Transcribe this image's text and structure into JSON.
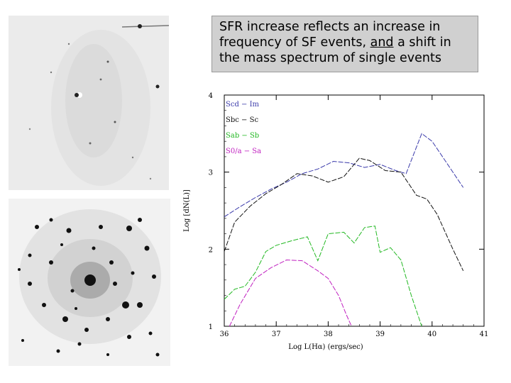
{
  "callout": {
    "text_before": "SFR increase reflects an increase in frequency of SF events, ",
    "text_underlined": "and",
    "text_after": " a shift in the mass spectrum of single events"
  },
  "images": {
    "top": "edge-on galaxy image (faint)",
    "bottom": "face-on spiral galaxy image"
  },
  "colors": {
    "Sm": "#3a3aaa",
    "Sbc": "#111111",
    "Sab": "#22b822",
    "Sa": "#c020c0"
  },
  "chart_data": {
    "type": "line",
    "xlabel": "Log L(Hα)   (ergs/sec)",
    "ylabel": "Log [dN(L)]",
    "xlim": [
      36,
      41
    ],
    "ylim": [
      1,
      4
    ],
    "x_ticks": [
      "36",
      "37",
      "38",
      "39",
      "40",
      "41"
    ],
    "y_ticks": [
      "1",
      "2",
      "3",
      "4"
    ],
    "series": [
      {
        "name": "Scd − Im",
        "color_key": "Sm",
        "x": [
          36.0,
          36.3,
          36.6,
          36.9,
          37.2,
          37.5,
          37.8,
          38.1,
          38.4,
          38.7,
          39.0,
          39.3,
          39.5,
          39.8,
          40.0,
          40.3,
          40.6
        ],
        "y": [
          2.42,
          2.55,
          2.67,
          2.78,
          2.87,
          2.98,
          3.04,
          3.14,
          3.12,
          3.06,
          3.1,
          3.02,
          2.98,
          3.5,
          3.4,
          3.1,
          2.8
        ]
      },
      {
        "name": "Sbc − Sc",
        "color_key": "Sbc",
        "x": [
          36.0,
          36.2,
          36.5,
          36.8,
          37.1,
          37.4,
          37.7,
          38.0,
          38.3,
          38.6,
          38.8,
          39.1,
          39.4,
          39.7,
          39.9,
          40.1,
          40.4,
          40.6
        ],
        "y": [
          1.97,
          2.35,
          2.56,
          2.72,
          2.84,
          2.98,
          2.95,
          2.87,
          2.94,
          3.18,
          3.15,
          3.02,
          3.0,
          2.7,
          2.65,
          2.45,
          2.0,
          1.72
        ]
      },
      {
        "name": "Sab − Sb",
        "color_key": "Sab",
        "x": [
          36.0,
          36.2,
          36.4,
          36.6,
          36.8,
          37.0,
          37.3,
          37.6,
          37.8,
          38.0,
          38.3,
          38.5,
          38.7,
          38.9,
          39.0,
          39.2,
          39.4,
          39.6,
          39.8
        ],
        "y": [
          1.35,
          1.48,
          1.52,
          1.7,
          1.97,
          2.05,
          2.11,
          2.16,
          1.85,
          2.2,
          2.22,
          2.08,
          2.28,
          2.3,
          1.96,
          2.02,
          1.86,
          1.4,
          1.0
        ]
      },
      {
        "name": "S0/a − Sa",
        "color_key": "Sa",
        "x": [
          36.1,
          36.3,
          36.6,
          36.9,
          37.2,
          37.5,
          37.8,
          38.0,
          38.2,
          38.35,
          38.45
        ],
        "y": [
          1.0,
          1.28,
          1.62,
          1.76,
          1.86,
          1.85,
          1.72,
          1.62,
          1.4,
          1.15,
          1.0
        ]
      }
    ]
  }
}
